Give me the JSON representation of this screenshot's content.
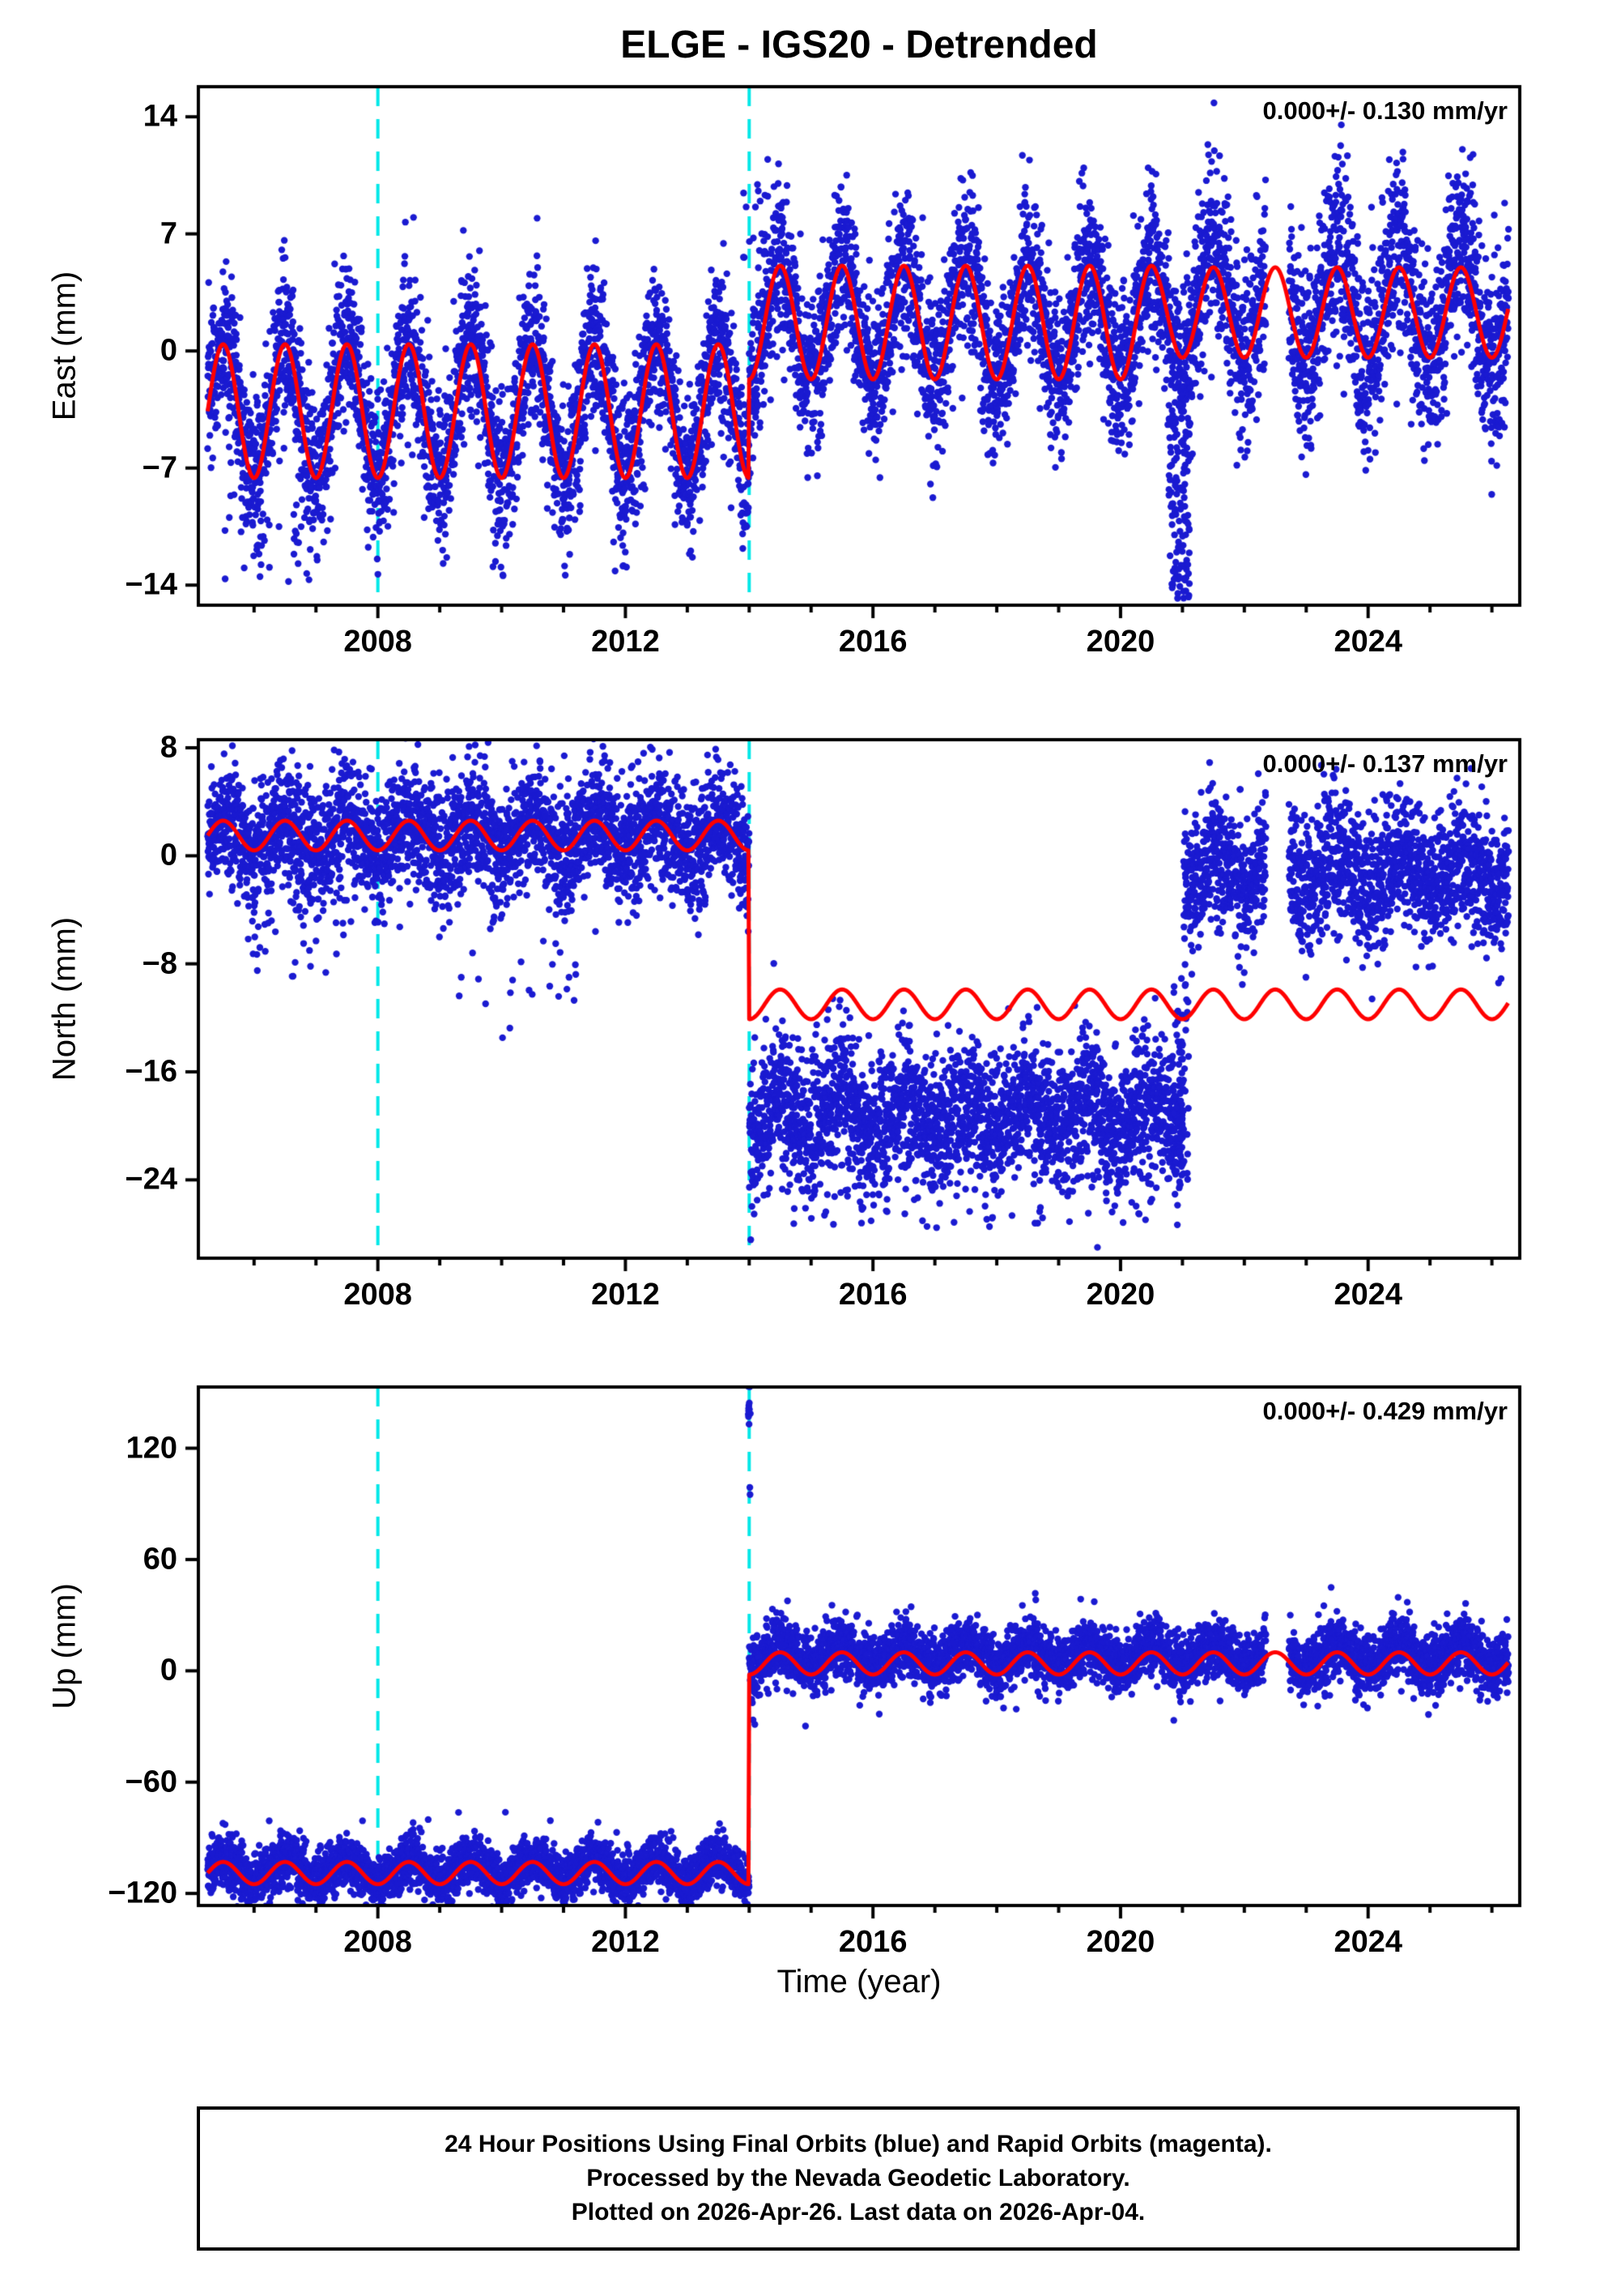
{
  "title": "ELGE - IGS20 - Detrended",
  "xlabel": "Time (year)",
  "footer": {
    "line1": "24 Hour Positions Using Final Orbits (blue) and Rapid Orbits (magenta).",
    "line2": "Processed by the Nevada Geodetic Laboratory.",
    "line3": "Plotted on 2026-Apr-26. Last data on 2026-Apr-04."
  },
  "chart_data": {
    "type": "scatter",
    "x_range": [
      2005.1,
      2026.45
    ],
    "x_ticks": [
      2008,
      2012,
      2016,
      2020,
      2024
    ],
    "x_minor_step": 1,
    "event_lines_x": [
      2008.0,
      2014.0
    ],
    "data_gaps": [
      [
        2022.35,
        2022.72
      ]
    ],
    "sampling_per_year": 365,
    "seed": 20260426,
    "colors": {
      "points": "#1a1ad1",
      "model": "#ff0000",
      "events": "#00e8e8",
      "frame": "#000000"
    },
    "panels": [
      {
        "ylabel": "East (mm)",
        "rate_label": "0.000+/- 0.130 mm/yr",
        "y_range": [
          -15.2,
          15.8
        ],
        "y_ticks": [
          14,
          7,
          0,
          -7,
          -14
        ],
        "model_segments": [
          {
            "t0": 2005.25,
            "t1": 2014.0,
            "mean": -3.6,
            "amp": 4.0
          },
          {
            "t0": 2014.0,
            "t1": 2020.6,
            "mean": 1.7,
            "amp": 3.4
          },
          {
            "t0": 2020.6,
            "t1": 2026.27,
            "mean": 2.3,
            "amp": 2.7
          }
        ],
        "scatter_segments": [
          {
            "t0": 2005.25,
            "t1": 2014.0,
            "mean": -3.4,
            "amp": 4.2,
            "sigma": 2.3
          },
          {
            "t0": 2014.0,
            "t1": 2021.0,
            "mean": 1.7,
            "amp": 3.6,
            "sigma": 2.4
          },
          {
            "t0": 2021.0,
            "t1": 2026.27,
            "mean": 2.6,
            "amp": 3.6,
            "sigma": 2.8
          }
        ],
        "outlier_clusters": [
          {
            "t0": 2005.5,
            "t1": 2006.9,
            "count": 35,
            "ymin": -13.8,
            "ymax": -8.5
          },
          {
            "t0": 2009.8,
            "t1": 2010.05,
            "count": 3,
            "ymin": -13.5,
            "ymax": -12.0
          },
          {
            "t0": 2020.78,
            "t1": 2021.12,
            "count": 120,
            "ymin": -14.8,
            "ymax": -3.0
          },
          {
            "t0": 2013.9,
            "t1": 2014.3,
            "count": 20,
            "ymin": 5.0,
            "ymax": 11.5
          }
        ]
      },
      {
        "ylabel": "North (mm)",
        "rate_label": "0.000+/- 0.137 mm/yr",
        "y_range": [
          -29.8,
          8.6
        ],
        "y_ticks": [
          8,
          0,
          -8,
          -16,
          -24
        ],
        "model_segments": [
          {
            "t0": 2005.25,
            "t1": 2014.0,
            "mean": 1.5,
            "amp": 1.1
          },
          {
            "t0": 2014.0,
            "t1": 2026.27,
            "mean": -11.0,
            "amp": 1.1
          }
        ],
        "scatter_segments": [
          {
            "t0": 2005.25,
            "t1": 2014.0,
            "mean": 1.4,
            "amp": 1.3,
            "sigma": 2.2
          },
          {
            "t0": 2014.0,
            "t1": 2021.02,
            "mean": -19.2,
            "amp": 1.3,
            "sigma": 2.6
          },
          {
            "t0": 2021.02,
            "t1": 2026.27,
            "mean": -1.2,
            "amp": 1.3,
            "sigma": 2.4
          }
        ],
        "outlier_clusters": [
          {
            "t0": 2005.9,
            "t1": 2007.6,
            "count": 30,
            "ymin": -9.0,
            "ymax": -2.5
          },
          {
            "t0": 2009.3,
            "t1": 2011.6,
            "count": 25,
            "ymin": -11.0,
            "ymax": -4.0
          },
          {
            "t0": 2010.0,
            "t1": 2010.2,
            "count": 2,
            "ymin": -13.5,
            "ymax": -12.5
          },
          {
            "t0": 2005.3,
            "t1": 2013.9,
            "count": 25,
            "ymin": 4.5,
            "ymax": 7.2
          },
          {
            "t0": 2014.1,
            "t1": 2020.9,
            "count": 50,
            "ymin": -27.5,
            "ymax": -23.5
          },
          {
            "t0": 2019.5,
            "t1": 2019.7,
            "count": 1,
            "ymin": -29.3,
            "ymax": -28.8
          },
          {
            "t0": 2020.85,
            "t1": 2021.1,
            "count": 60,
            "ymin": -24.0,
            "ymax": -8.0
          }
        ]
      },
      {
        "ylabel": "Up (mm)",
        "rate_label": "0.000+/- 0.429 mm/yr",
        "y_range": [
          -126.5,
          153.0
        ],
        "y_ticks": [
          120,
          60,
          0,
          -60,
          -120
        ],
        "model_segments": [
          {
            "t0": 2005.25,
            "t1": 2014.0,
            "mean": -109.0,
            "amp": 6.0
          },
          {
            "t0": 2014.0,
            "t1": 2026.27,
            "mean": 4.0,
            "amp": 6.0
          }
        ],
        "scatter_segments": [
          {
            "t0": 2005.25,
            "t1": 2014.0,
            "mean": -108.0,
            "amp": 6.0,
            "sigma": 7.0
          },
          {
            "t0": 2014.0,
            "t1": 2026.27,
            "mean": 8.0,
            "amp": 6.0,
            "sigma": 8.0
          }
        ],
        "outlier_clusters": [
          {
            "t0": 2013.985,
            "t1": 2014.02,
            "count": 28,
            "ymin": 132.0,
            "ymax": 170.0
          },
          {
            "t0": 2013.99,
            "t1": 2014.03,
            "count": 2,
            "ymin": 85.0,
            "ymax": 100.0
          },
          {
            "t0": 2014.0,
            "t1": 2014.1,
            "count": 2,
            "ymin": -40.0,
            "ymax": -25.0
          },
          {
            "t0": 2005.4,
            "t1": 2013.9,
            "count": 8,
            "ymin": -84.0,
            "ymax": -76.0
          }
        ]
      }
    ]
  }
}
